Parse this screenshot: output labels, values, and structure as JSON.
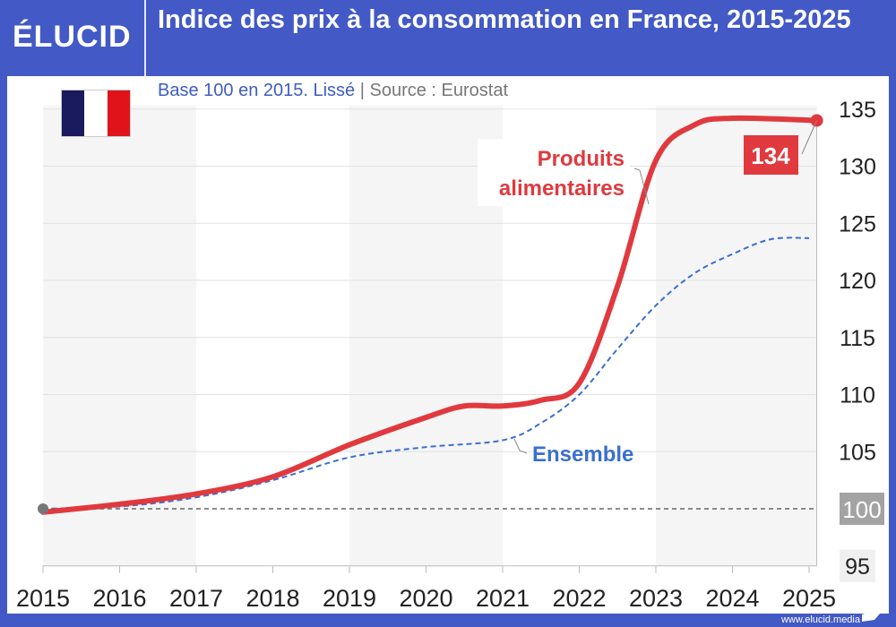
{
  "header": {
    "logo": "ÉLUCID",
    "title": "Indice des prix à la consommation en France, 2015-2025"
  },
  "subtitle": {
    "base": "Base 100 en 2015. Lissé",
    "separator": "|",
    "source": "Source : Eurostat"
  },
  "footer": {
    "url": "www.elucid.media"
  },
  "flag": {
    "colors": [
      "#1a1a5e",
      "#ffffff",
      "#e0131b"
    ]
  },
  "chart_data": {
    "type": "line",
    "title": "Indice des prix à la consommation en France, 2015-2025",
    "xlim": [
      2015,
      2025.1
    ],
    "ylim": [
      95,
      135
    ],
    "xticks": [
      "2015",
      "2016",
      "2017",
      "2018",
      "2019",
      "2020",
      "2021",
      "2022",
      "2023",
      "2024",
      "2025"
    ],
    "yticks": [
      "95",
      "100",
      "105",
      "110",
      "115",
      "120",
      "125",
      "130",
      "135"
    ],
    "reference_line": {
      "value": 100,
      "label": "100"
    },
    "grid": true,
    "series": [
      {
        "name": "Produits alimentaires",
        "color": "#e0393e",
        "style": "solid",
        "x": [
          2015,
          2016,
          2017,
          2018,
          2019,
          2020,
          2020.5,
          2021,
          2021.5,
          2022,
          2022.5,
          2023,
          2023.5,
          2024,
          2025.1
        ],
        "y": [
          99.7,
          100.4,
          101.3,
          102.8,
          105.6,
          108.0,
          109.0,
          109.0,
          109.5,
          111.0,
          119.5,
          130.5,
          133.6,
          134.2,
          134.0
        ],
        "end_label": "134"
      },
      {
        "name": "Ensemble",
        "color": "#3a6fd0",
        "style": "dashed",
        "x": [
          2015,
          2016,
          2017,
          2018,
          2019,
          2020,
          2021,
          2021.5,
          2022,
          2022.5,
          2023,
          2023.5,
          2024,
          2024.5,
          2025
        ],
        "y": [
          100,
          100.2,
          101.0,
          102.5,
          104.5,
          105.4,
          106.0,
          107.5,
          110.0,
          114.0,
          117.8,
          120.6,
          122.3,
          123.6,
          123.7
        ]
      }
    ]
  }
}
